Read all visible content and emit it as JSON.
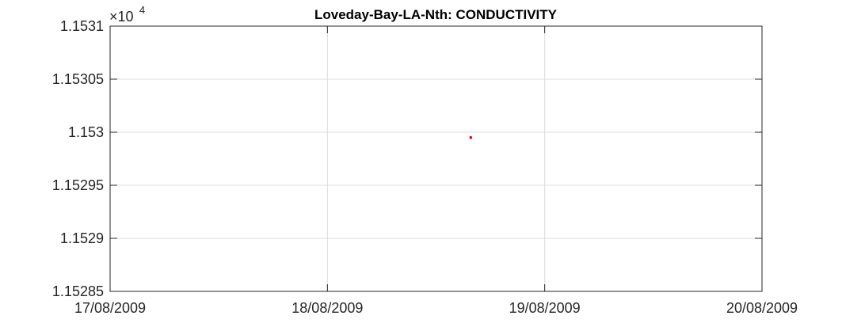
{
  "chart_data": {
    "type": "scatter",
    "title": "Loveday-Bay-LA-Nth: CONDUCTIVITY",
    "xlabel": "",
    "ylabel": "",
    "exponent_label": "×10",
    "exponent_power": "4",
    "x_ticks": [
      "17/08/2009",
      "18/08/2009",
      "19/08/2009",
      "20/08/2009"
    ],
    "y_ticks": [
      "1.15285",
      "1.1529",
      "1.15295",
      "1.153",
      "1.15305",
      "1.1531"
    ],
    "x_range": [
      "17/08/2009",
      "20/08/2009"
    ],
    "y_range": [
      1.15285,
      1.1531
    ],
    "grid": true,
    "marker_color": "#ff0000",
    "points": [
      {
        "x": "18/08/2009 15:50",
        "y": 1.152995
      }
    ]
  }
}
